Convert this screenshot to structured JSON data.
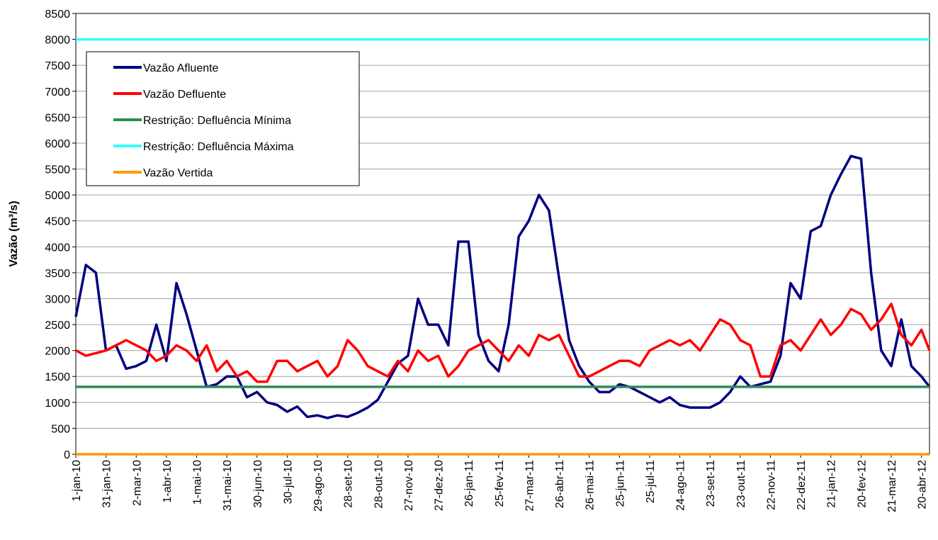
{
  "chart_data": {
    "type": "line",
    "y_label": "Vazão (m³/s)",
    "x": [
      "1-jan-10",
      "11-jan-10",
      "21-jan-10",
      "31-jan-10",
      "10-fev-10",
      "20-fev-10",
      "2-mar-10",
      "12-mar-10",
      "22-mar-10",
      "1-abr-10",
      "11-abr-10",
      "21-abr-10",
      "1-mai-10",
      "11-mai-10",
      "21-mai-10",
      "31-mai-10",
      "10-jun-10",
      "20-jun-10",
      "30-jun-10",
      "10-jul-10",
      "20-jul-10",
      "30-jul-10",
      "9-ago-10",
      "19-ago-10",
      "29-ago-10",
      "8-set-10",
      "18-set-10",
      "28-set-10",
      "8-out-10",
      "18-out-10",
      "28-out-10",
      "7-nov-10",
      "17-nov-10",
      "27-nov-10",
      "7-dez-10",
      "17-dez-10",
      "27-dez-10",
      "6-jan-11",
      "16-jan-11",
      "26-jan-11",
      "5-fev-11",
      "15-fev-11",
      "25-fev-11",
      "7-mar-11",
      "17-mar-11",
      "27-mar-11",
      "6-abr-11",
      "16-abr-11",
      "26-abr-11",
      "6-mai-11",
      "16-mai-11",
      "26-mai-11",
      "5-jun-11",
      "15-jun-11",
      "25-jun-11",
      "5-jul-11",
      "15-jul-11",
      "25-jul-11",
      "4-ago-11",
      "14-ago-11",
      "24-ago-11",
      "3-set-11",
      "13-set-11",
      "23-set-11",
      "3-out-11",
      "13-out-11",
      "23-out-11",
      "2-nov-11",
      "12-nov-11",
      "22-nov-11",
      "2-dez-11",
      "12-dez-11",
      "22-dez-11",
      "1-jan-12",
      "11-jan-12",
      "21-jan-12",
      "31-jan-12",
      "10-fev-12",
      "20-fev-12",
      "1-mar-12",
      "11-mar-12",
      "21-mar-12",
      "31-mar-12",
      "10-abr-12",
      "20-abr-12",
      "28-abr-12"
    ],
    "xlim": [
      "1-jan-10",
      "28-abr-12"
    ],
    "xticks": [
      "1-jan-10",
      "31-jan-10",
      "2-mar-10",
      "1-abr-10",
      "1-mai-10",
      "31-mai-10",
      "30-jun-10",
      "30-jul-10",
      "29-ago-10",
      "28-set-10",
      "28-out-10",
      "27-nov-10",
      "27-dez-10",
      "26-jan-11",
      "25-fev-11",
      "27-mar-11",
      "26-abr-11",
      "26-mai-11",
      "25-jun-11",
      "25-jul-11",
      "24-ago-11",
      "23-set-11",
      "23-out-11",
      "22-nov-11",
      "22-dez-11",
      "21-jan-12",
      "20-fev-12",
      "21-mar-12",
      "20-abr-12"
    ],
    "ylim": [
      0,
      8500
    ],
    "yticks": [
      0,
      500,
      1000,
      1500,
      2000,
      2500,
      3000,
      3500,
      4000,
      4500,
      5000,
      5500,
      6000,
      6500,
      7000,
      7500,
      8000,
      8500
    ],
    "grid": true,
    "legend": "upper left",
    "series": [
      {
        "name": "Vazão Afluente",
        "color": "#000080",
        "values": [
          2650,
          3650,
          3500,
          2000,
          2100,
          1650,
          1700,
          1800,
          2500,
          1800,
          3300,
          2700,
          2000,
          1300,
          1350,
          1500,
          1500,
          1100,
          1200,
          1000,
          950,
          820,
          920,
          720,
          750,
          700,
          750,
          720,
          800,
          900,
          1050,
          1400,
          1750,
          1900,
          3000,
          2500,
          2500,
          2100,
          4100,
          4100,
          2300,
          1800,
          1600,
          2500,
          4200,
          4500,
          5000,
          4700,
          3400,
          2200,
          1700,
          1400,
          1200,
          1200,
          1350,
          1300,
          1200,
          1100,
          1000,
          1100,
          950,
          900,
          900,
          900,
          1000,
          1200,
          1500,
          1300,
          1350,
          1400,
          1900,
          3300,
          3000,
          4300,
          4400,
          5000,
          5400,
          5750,
          5700,
          3500,
          2000,
          1700,
          2600,
          1700,
          1500,
          1300
        ]
      },
      {
        "name": "Vazão Defluente",
        "color": "#ff0000",
        "values": [
          2000,
          1900,
          1950,
          2000,
          2100,
          2200,
          2100,
          2000,
          1800,
          1900,
          2100,
          2000,
          1800,
          2100,
          1600,
          1800,
          1500,
          1600,
          1400,
          1400,
          1800,
          1800,
          1600,
          1700,
          1800,
          1500,
          1700,
          2200,
          2000,
          1700,
          1600,
          1500,
          1800,
          1600,
          2000,
          1800,
          1900,
          1500,
          1700,
          2000,
          2100,
          2200,
          2000,
          1800,
          2100,
          1900,
          2300,
          2200,
          2300,
          1900,
          1500,
          1500,
          1600,
          1700,
          1800,
          1800,
          1700,
          2000,
          2100,
          2200,
          2100,
          2200,
          2000,
          2300,
          2600,
          2500,
          2200,
          2100,
          1500,
          1500,
          2100,
          2200,
          2000,
          2300,
          2600,
          2300,
          2500,
          2800,
          2700,
          2400,
          2600,
          2900,
          2300,
          2100,
          2400,
          2000
        ]
      },
      {
        "name": "Restrição: Defluência Mínima",
        "color": "#2e8b57",
        "values": [
          1300,
          1300,
          1300,
          1300,
          1300,
          1300,
          1300,
          1300,
          1300,
          1300,
          1300,
          1300,
          1300,
          1300,
          1300,
          1300,
          1300,
          1300,
          1300,
          1300,
          1300,
          1300,
          1300,
          1300,
          1300,
          1300,
          1300,
          1300,
          1300,
          1300,
          1300,
          1300,
          1300,
          1300,
          1300,
          1300,
          1300,
          1300,
          1300,
          1300,
          1300,
          1300,
          1300,
          1300,
          1300,
          1300,
          1300,
          1300,
          1300,
          1300,
          1300,
          1300,
          1300,
          1300,
          1300,
          1300,
          1300,
          1300,
          1300,
          1300,
          1300,
          1300,
          1300,
          1300,
          1300,
          1300,
          1300,
          1300,
          1300,
          1300,
          1300,
          1300,
          1300,
          1300,
          1300,
          1300,
          1300,
          1300,
          1300,
          1300,
          1300,
          1300,
          1300,
          1300,
          1300,
          1300
        ]
      },
      {
        "name": "Restrição: Defluência Máxima",
        "color": "#33ffff",
        "values": [
          8000,
          8000,
          8000,
          8000,
          8000,
          8000,
          8000,
          8000,
          8000,
          8000,
          8000,
          8000,
          8000,
          8000,
          8000,
          8000,
          8000,
          8000,
          8000,
          8000,
          8000,
          8000,
          8000,
          8000,
          8000,
          8000,
          8000,
          8000,
          8000,
          8000,
          8000,
          8000,
          8000,
          8000,
          8000,
          8000,
          8000,
          8000,
          8000,
          8000,
          8000,
          8000,
          8000,
          8000,
          8000,
          8000,
          8000,
          8000,
          8000,
          8000,
          8000,
          8000,
          8000,
          8000,
          8000,
          8000,
          8000,
          8000,
          8000,
          8000,
          8000,
          8000,
          8000,
          8000,
          8000,
          8000,
          8000,
          8000,
          8000,
          8000,
          8000,
          8000,
          8000,
          8000,
          8000,
          8000,
          8000,
          8000,
          8000,
          8000,
          8000,
          8000,
          8000,
          8000,
          8000,
          8000
        ]
      },
      {
        "name": "Vazão Vertida",
        "color": "#ff9900",
        "values": [
          0,
          0,
          0,
          0,
          0,
          0,
          0,
          0,
          0,
          0,
          0,
          0,
          0,
          0,
          0,
          0,
          0,
          0,
          0,
          0,
          0,
          0,
          0,
          0,
          0,
          0,
          0,
          0,
          0,
          0,
          0,
          0,
          0,
          0,
          0,
          0,
          0,
          0,
          0,
          0,
          0,
          0,
          0,
          0,
          0,
          0,
          0,
          0,
          0,
          0,
          0,
          0,
          0,
          0,
          0,
          0,
          0,
          0,
          0,
          0,
          0,
          0,
          0,
          0,
          0,
          0,
          0,
          0,
          0,
          0,
          0,
          0,
          0,
          0,
          0,
          0,
          0,
          0,
          0,
          0,
          0,
          0,
          0,
          0,
          0,
          0
        ]
      }
    ]
  }
}
